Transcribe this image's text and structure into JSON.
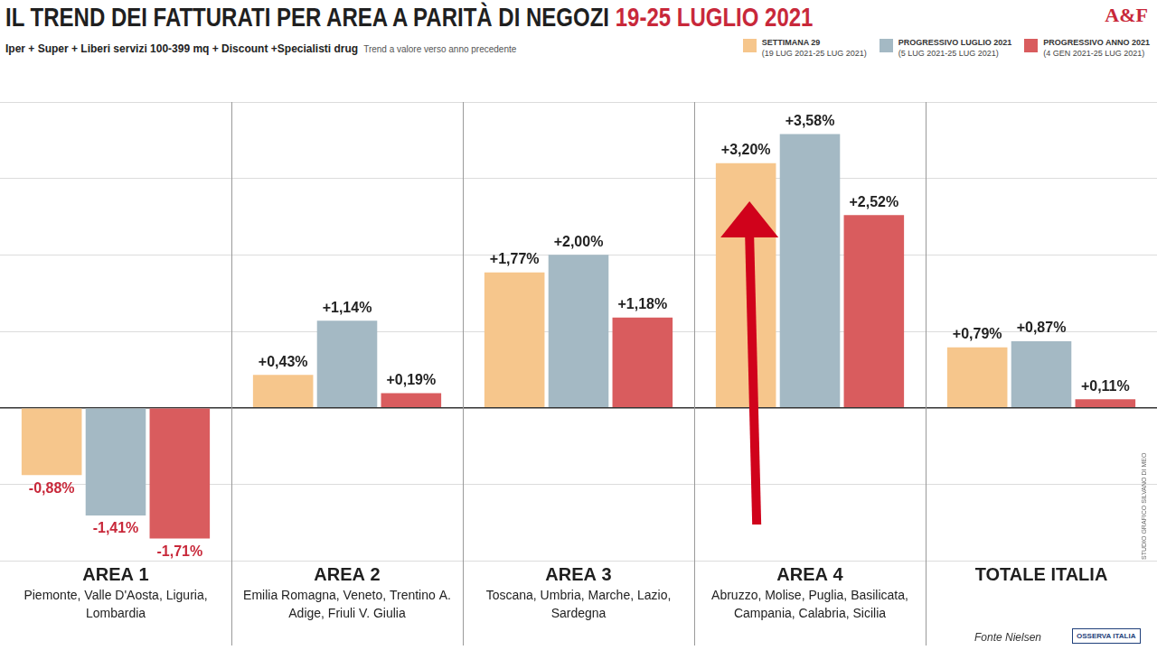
{
  "chart_data": {
    "type": "bar",
    "title": "IL TREND DEI FATTURATI PER AREA A PARITÀ DI NEGOZI",
    "title_dates": "19-25 LUGLIO 2021",
    "subtitle": "Iper + Super + Liberi servizi 100-399 mq + Discount +Specialisti drug",
    "subtitle_note": "Trend a valore verso anno precedente",
    "categories": [
      "AREA 1",
      "AREA 2",
      "AREA 3",
      "AREA 4",
      "TOTALE ITALIA"
    ],
    "category_regions": [
      "Piemonte, Valle D'Aosta, Liguria, Lombardia",
      "Emilia Romagna, Veneto, Trentino A. Adige, Friuli V. Giulia",
      "Toscana, Umbria, Marche, Lazio, Sardegna",
      "Abruzzo, Molise, Puglia, Basilicata, Campania, Calabria, Sicilia",
      null
    ],
    "series": [
      {
        "name": "SETTIMANA 29",
        "period": "(19 LUG 2021-25 LUG 2021)",
        "color": "#f6c68c",
        "values": [
          -0.88,
          0.43,
          1.77,
          3.2,
          0.79
        ],
        "value_labels": [
          "-0,88%",
          "+0,43%",
          "+1,77%",
          "+3,20%",
          "+0,79%"
        ]
      },
      {
        "name": "PROGRESSIVO LUGLIO 2021",
        "period": "(5 LUG 2021-25 LUG 2021)",
        "color": "#a4b9c4",
        "values": [
          -1.41,
          1.14,
          2.0,
          3.58,
          0.87
        ],
        "value_labels": [
          "-1,41%",
          "+1,14%",
          "+2,00%",
          "+3,58%",
          "+0,87%"
        ]
      },
      {
        "name": "PROGRESSIVO ANNO 2021",
        "period": "(4 GEN 2021-25 LUG 2021)",
        "color": "#d95c5e",
        "values": [
          -1.71,
          0.19,
          1.18,
          2.52,
          0.11
        ],
        "value_labels": [
          "-1,71%",
          "+0,19%",
          "+1,18%",
          "+2,52%",
          "+0,11%"
        ]
      }
    ],
    "ylim": [
      -2,
      4
    ],
    "yticks": [
      -2,
      -1,
      0,
      1,
      2,
      3,
      4
    ],
    "grid": true,
    "tick_labels": "x",
    "data_labels": true,
    "legend": "top-right",
    "source": "Fonte Nielsen",
    "publisher": "OSSERVA ITALIA",
    "credit": "STUDIO GRAFICO SILVANO DI MEO",
    "watermark": "A&F"
  }
}
